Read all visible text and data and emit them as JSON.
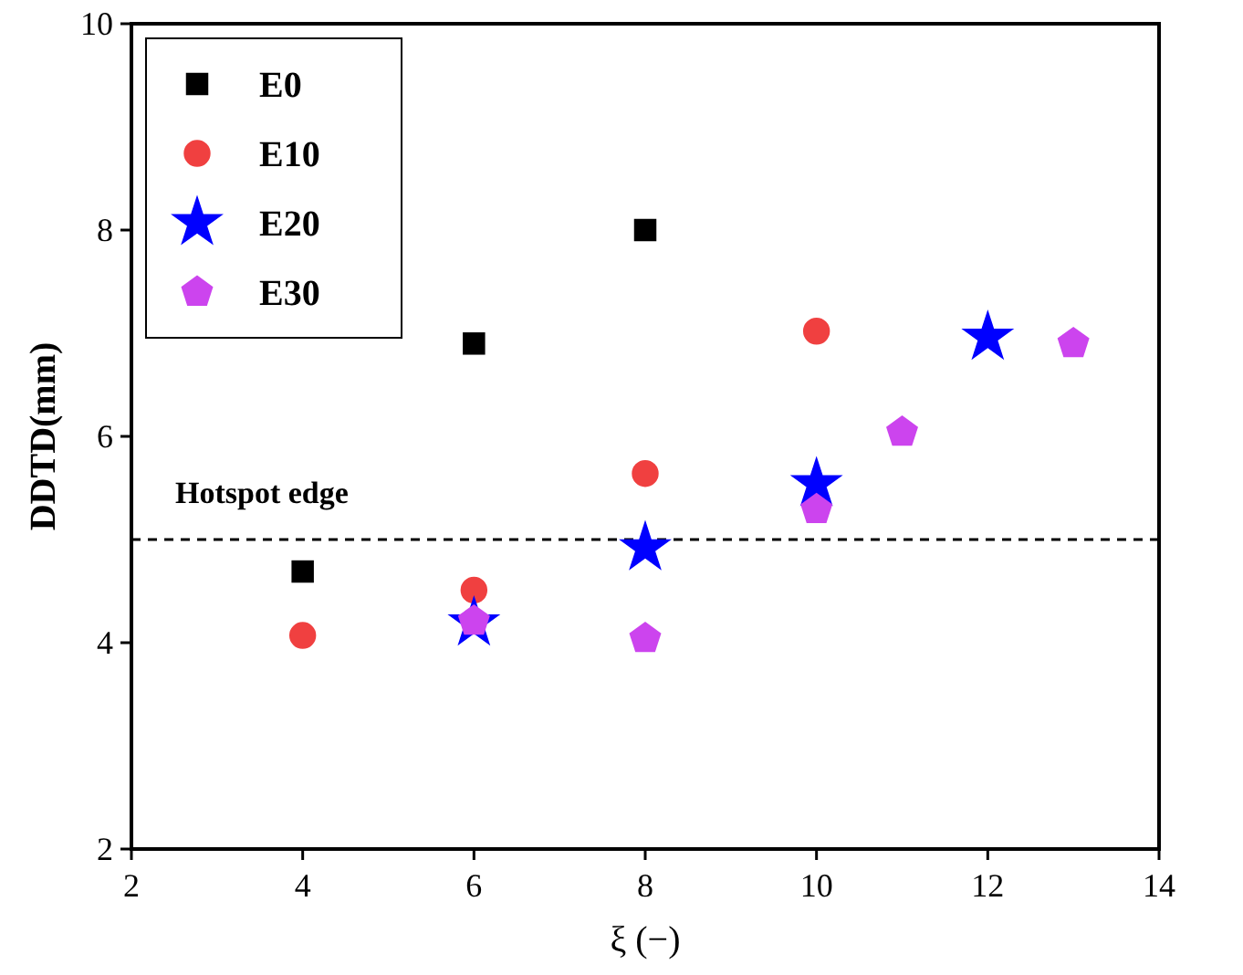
{
  "chart_data": {
    "type": "scatter",
    "xlabel": "ξ (−)",
    "ylabel": "DDTD(mm)",
    "xlim": [
      2,
      14
    ],
    "xticks": [
      2,
      4,
      6,
      8,
      10,
      12,
      14
    ],
    "ylim": [
      2,
      10
    ],
    "yticks": [
      2,
      4,
      6,
      8,
      10
    ],
    "grid": false,
    "legend": "top left",
    "ref_lines": [
      {
        "axis": "y",
        "value": 5,
        "label": "Hotspot edge",
        "color": "#000000",
        "line_style": "dashed"
      }
    ],
    "series": [
      {
        "name": "E0",
        "color": "#000000",
        "marker": "square",
        "x": [
          4,
          6,
          8
        ],
        "values": [
          4.69,
          6.9,
          8.0
        ]
      },
      {
        "name": "E10",
        "color": "#f04040",
        "marker": "circle",
        "x": [
          4,
          6,
          8,
          10
        ],
        "values": [
          4.07,
          4.51,
          5.64,
          7.02
        ]
      },
      {
        "name": "E20",
        "color": "#0000ff",
        "marker": "star",
        "x": [
          6,
          8,
          10,
          12
        ],
        "values": [
          4.19,
          4.92,
          5.54,
          6.96
        ]
      },
      {
        "name": "E30",
        "color": "#cc44ee",
        "x": [
          6,
          8,
          10,
          11,
          13
        ],
        "values": [
          4.21,
          4.04,
          5.29,
          6.04,
          6.9
        ]
      }
    ]
  }
}
